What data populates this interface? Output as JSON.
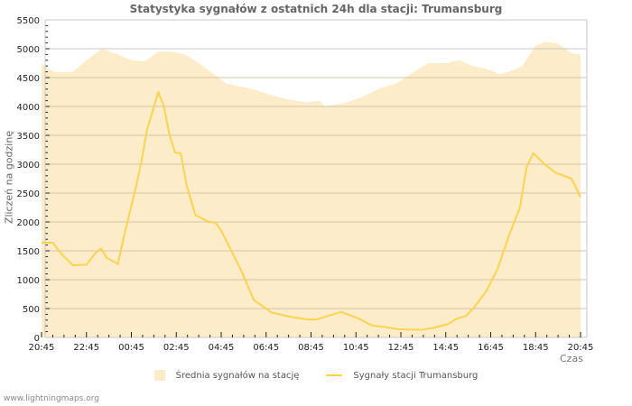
{
  "title": "Statystyka sygnałów z ostatnich 24h dla stacji: Trumansburg",
  "ylabel": "Zliczeń na godzinę",
  "xlabel": "Czas",
  "legend": {
    "area_label": "Średnia sygnałów na stację",
    "line_label": "Sygnały stacji Trumansburg"
  },
  "footer": "www.lightningmaps.org",
  "colors": {
    "area": "#fdecca",
    "line": "#fcd34f",
    "grid": "#d4c4a8",
    "axis": "#c8c8c8"
  },
  "chart_data": {
    "type": "area+line",
    "title": "Statystyka sygnałów z ostatnich 24h dla stacji: Trumansburg",
    "xlabel": "Czas",
    "ylabel": "Zliczeń na godzinę",
    "ylim": [
      0,
      5500
    ],
    "yticks": [
      0,
      500,
      1000,
      1500,
      2000,
      2500,
      3000,
      3500,
      4000,
      4500,
      5000,
      5500
    ],
    "xticks": [
      "20:45",
      "22:45",
      "00:45",
      "02:45",
      "04:45",
      "06:45",
      "08:45",
      "10:45",
      "12:45",
      "14:45",
      "16:45",
      "18:45",
      "20:45"
    ],
    "grid": true,
    "legend_position": "bottom",
    "series": [
      {
        "name": "Średnia sygnałów na stację",
        "kind": "area",
        "x_hours": [
          0,
          0.25,
          0.6,
          1.4,
          2.0,
          2.7,
          3.4,
          4.0,
          4.6,
          5.2,
          5.8,
          6.4,
          7.0,
          7.6,
          8.2,
          9.4,
          10.2,
          11.0,
          11.8,
          12.4,
          12.6,
          13.4,
          14.2,
          15.0,
          15.8,
          16.6,
          17.2,
          18.0,
          18.6,
          19.2,
          19.8,
          20.4,
          20.8,
          21.4,
          22.0,
          22.4,
          23.0,
          23.6,
          24.0
        ],
        "values": [
          4750,
          4650,
          4600,
          4600,
          4800,
          5000,
          4900,
          4800,
          4780,
          4950,
          4950,
          4900,
          4750,
          4580,
          4400,
          4300,
          4200,
          4120,
          4070,
          4100,
          4000,
          4050,
          4150,
          4300,
          4400,
          4600,
          4750,
          4750,
          4800,
          4700,
          4650,
          4560,
          4600,
          4700,
          5050,
          5120,
          5090,
          4920,
          4900
        ]
      },
      {
        "name": "Sygnały stacji Trumansburg",
        "kind": "line",
        "x_hours": [
          0,
          0.5,
          0.9,
          1.4,
          2.0,
          2.4,
          2.65,
          2.9,
          3.4,
          3.7,
          4.2,
          4.45,
          4.7,
          5.2,
          5.45,
          5.7,
          5.95,
          6.2,
          6.45,
          6.85,
          7.45,
          7.75,
          8.0,
          8.45,
          8.9,
          9.45,
          10.25,
          11.05,
          11.85,
          12.25,
          12.65,
          13.35,
          14.1,
          14.7,
          15.3,
          15.9,
          16.9,
          17.5,
          18.1,
          18.5,
          18.9,
          19.3,
          19.8,
          20.3,
          20.8,
          21.3,
          21.6,
          21.9,
          22.4,
          22.9,
          23.6,
          24.0
        ],
        "values": [
          1640,
          1640,
          1440,
          1250,
          1260,
          1460,
          1540,
          1380,
          1270,
          1800,
          2600,
          3050,
          3600,
          4250,
          4000,
          3500,
          3200,
          3190,
          2650,
          2120,
          2000,
          1990,
          1850,
          1500,
          1150,
          650,
          430,
          360,
          310,
          310,
          360,
          440,
          330,
          210,
          180,
          140,
          130,
          170,
          230,
          330,
          370,
          540,
          800,
          1180,
          1750,
          2250,
          2950,
          3190,
          3000,
          2850,
          2750,
          2430
        ]
      }
    ]
  }
}
